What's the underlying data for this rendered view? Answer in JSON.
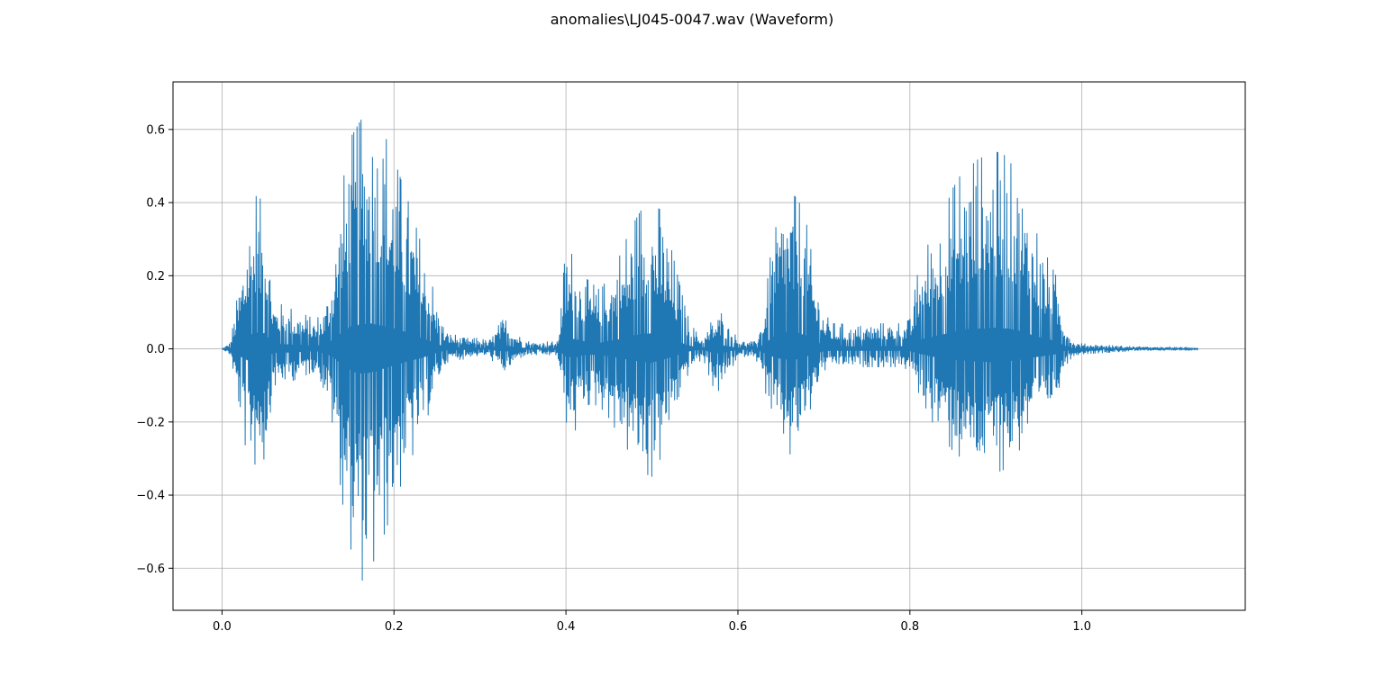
{
  "figure": {
    "title": "anomalies\\LJ045-0047.wav (Waveform)"
  },
  "colors": {
    "series": "#1f77b4",
    "grid": "#b0b0b0",
    "axes": "#000000",
    "background": "#ffffff"
  },
  "chart_data": {
    "type": "line",
    "title": "anomalies\\LJ045-0047.wav (Waveform)",
    "xlabel": "",
    "ylabel": "",
    "xlim": [
      -0.057,
      1.19
    ],
    "ylim": [
      -0.715,
      0.73
    ],
    "grid": true,
    "legend": "none",
    "x_ticks": [
      0.0,
      0.2,
      0.4,
      0.6,
      0.8,
      1.0
    ],
    "x_tick_labels": [
      "0.0",
      "0.2",
      "0.4",
      "0.6",
      "0.8",
      "1.0"
    ],
    "y_ticks": [
      -0.6,
      -0.4,
      -0.2,
      0.0,
      0.2,
      0.4,
      0.6
    ],
    "y_tick_labels": [
      "−0.6",
      "−0.4",
      "−0.2",
      "0.0",
      "0.2",
      "0.4",
      "0.6"
    ],
    "duration": 1.135,
    "series": [
      {
        "name": "",
        "envelope": {
          "t": [
            0.0,
            0.01,
            0.02,
            0.03,
            0.04,
            0.05,
            0.06,
            0.07,
            0.08,
            0.09,
            0.1,
            0.11,
            0.12,
            0.13,
            0.14,
            0.15,
            0.16,
            0.17,
            0.18,
            0.19,
            0.2,
            0.21,
            0.22,
            0.23,
            0.24,
            0.25,
            0.26,
            0.27,
            0.28,
            0.29,
            0.3,
            0.31,
            0.32,
            0.33,
            0.34,
            0.35,
            0.36,
            0.37,
            0.38,
            0.39,
            0.4,
            0.41,
            0.42,
            0.43,
            0.44,
            0.45,
            0.46,
            0.47,
            0.48,
            0.49,
            0.5,
            0.51,
            0.52,
            0.53,
            0.54,
            0.55,
            0.56,
            0.57,
            0.58,
            0.59,
            0.6,
            0.61,
            0.62,
            0.63,
            0.64,
            0.65,
            0.66,
            0.67,
            0.68,
            0.69,
            0.7,
            0.71,
            0.72,
            0.73,
            0.74,
            0.75,
            0.76,
            0.77,
            0.78,
            0.79,
            0.8,
            0.81,
            0.82,
            0.83,
            0.84,
            0.85,
            0.86,
            0.87,
            0.88,
            0.89,
            0.9,
            0.91,
            0.92,
            0.93,
            0.94,
            0.95,
            0.96,
            0.97,
            0.98,
            0.99,
            1.0,
            1.02,
            1.05,
            1.08,
            1.11,
            1.135
          ],
          "upper": [
            0.0,
            0.02,
            0.18,
            0.35,
            0.42,
            0.4,
            0.14,
            0.12,
            0.11,
            0.1,
            0.09,
            0.08,
            0.12,
            0.25,
            0.45,
            0.58,
            0.62,
            0.66,
            0.63,
            0.58,
            0.52,
            0.45,
            0.38,
            0.3,
            0.22,
            0.12,
            0.05,
            0.04,
            0.03,
            0.03,
            0.03,
            0.02,
            0.06,
            0.09,
            0.05,
            0.03,
            0.02,
            0.02,
            0.02,
            0.02,
            0.28,
            0.25,
            0.2,
            0.18,
            0.16,
            0.2,
            0.24,
            0.3,
            0.35,
            0.39,
            0.4,
            0.38,
            0.3,
            0.2,
            0.1,
            0.05,
            0.03,
            0.08,
            0.1,
            0.06,
            0.03,
            0.02,
            0.02,
            0.1,
            0.3,
            0.38,
            0.43,
            0.41,
            0.34,
            0.2,
            0.1,
            0.07,
            0.07,
            0.06,
            0.06,
            0.07,
            0.07,
            0.07,
            0.07,
            0.07,
            0.08,
            0.22,
            0.28,
            0.33,
            0.38,
            0.44,
            0.48,
            0.5,
            0.52,
            0.53,
            0.54,
            0.53,
            0.5,
            0.45,
            0.37,
            0.3,
            0.25,
            0.2,
            0.08,
            0.02,
            0.015,
            0.012,
            0.008,
            0.005,
            0.003,
            0.002
          ],
          "lower": [
            0.0,
            -0.02,
            -0.18,
            -0.3,
            -0.32,
            -0.3,
            -0.1,
            -0.1,
            -0.09,
            -0.08,
            -0.07,
            -0.06,
            -0.12,
            -0.22,
            -0.42,
            -0.55,
            -0.64,
            -0.62,
            -0.56,
            -0.5,
            -0.43,
            -0.36,
            -0.3,
            -0.25,
            -0.18,
            -0.1,
            -0.04,
            -0.03,
            -0.03,
            -0.02,
            -0.02,
            -0.02,
            -0.05,
            -0.07,
            -0.04,
            -0.02,
            -0.02,
            -0.02,
            -0.02,
            -0.02,
            -0.2,
            -0.23,
            -0.16,
            -0.15,
            -0.16,
            -0.19,
            -0.23,
            -0.27,
            -0.31,
            -0.34,
            -0.35,
            -0.3,
            -0.23,
            -0.16,
            -0.08,
            -0.04,
            -0.03,
            -0.1,
            -0.12,
            -0.06,
            -0.03,
            -0.02,
            -0.02,
            -0.1,
            -0.2,
            -0.26,
            -0.29,
            -0.27,
            -0.2,
            -0.12,
            -0.06,
            -0.05,
            -0.05,
            -0.05,
            -0.05,
            -0.05,
            -0.05,
            -0.05,
            -0.05,
            -0.05,
            -0.06,
            -0.12,
            -0.17,
            -0.22,
            -0.25,
            -0.28,
            -0.3,
            -0.31,
            -0.33,
            -0.34,
            -0.34,
            -0.33,
            -0.3,
            -0.27,
            -0.23,
            -0.2,
            -0.17,
            -0.14,
            -0.05,
            -0.02,
            -0.015,
            -0.012,
            -0.008,
            -0.005,
            -0.003,
            -0.002
          ]
        }
      }
    ]
  }
}
